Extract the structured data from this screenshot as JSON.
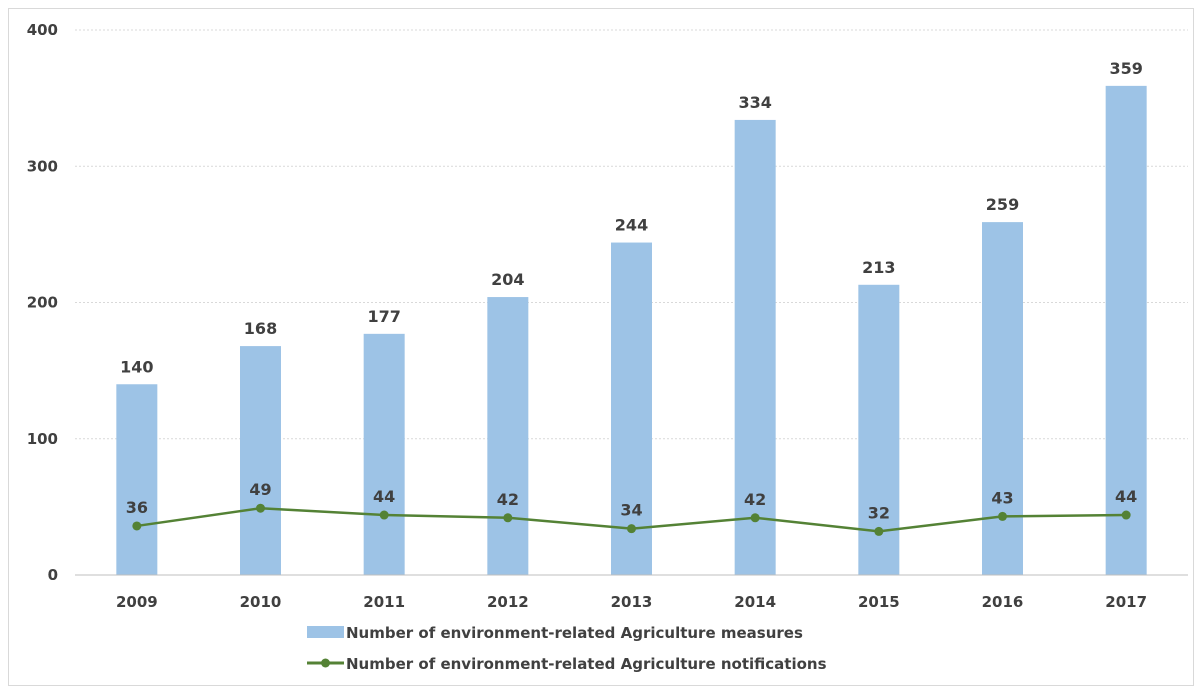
{
  "chart_data": {
    "type": "bar",
    "categories": [
      "2009",
      "2010",
      "2011",
      "2012",
      "2013",
      "2014",
      "2015",
      "2016",
      "2017"
    ],
    "series": [
      {
        "name": "Number of environment-related Agriculture measures",
        "type": "bar",
        "color": "#9dc3e6",
        "values": [
          140,
          168,
          177,
          204,
          244,
          334,
          213,
          259,
          359
        ]
      },
      {
        "name": "Number of environment-related Agriculture notifications",
        "type": "line",
        "color": "#548235",
        "values": [
          36,
          49,
          44,
          42,
          34,
          42,
          32,
          43,
          44
        ]
      }
    ],
    "ylim": [
      0,
      400
    ],
    "yticks": [
      "0",
      "100",
      "200",
      "300",
      "400"
    ],
    "grid": true,
    "legend_position": "bottom"
  }
}
